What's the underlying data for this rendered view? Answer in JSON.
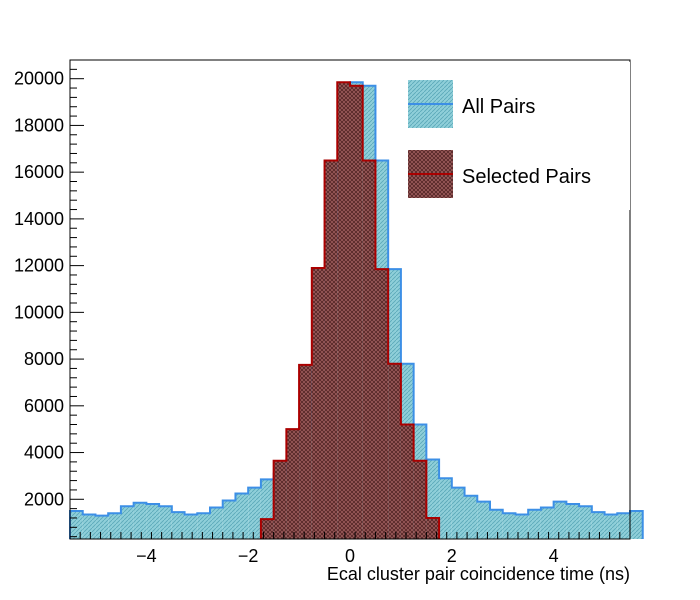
{
  "chart_data": {
    "type": "histogram",
    "title": "",
    "xlabel": "Ecal cluster pair coincidence time (ns)",
    "ylabel": "",
    "xlim": [
      -5.5,
      5.5
    ],
    "ylim": [
      300,
      20800
    ],
    "bin_width": 0.25,
    "x_ticks": [
      -4,
      -2,
      0,
      2,
      4
    ],
    "x_tick_labels": [
      "−4",
      "−2",
      "0",
      "2",
      "4"
    ],
    "y_ticks": [
      2000,
      4000,
      6000,
      8000,
      10000,
      12000,
      14000,
      16000,
      18000,
      20000
    ],
    "y_tick_labels": [
      "2000",
      "4000",
      "6000",
      "8000",
      "10000",
      "12000",
      "14000",
      "16000",
      "18000",
      "20000"
    ],
    "grid": false,
    "legend_position": "top-right",
    "series": [
      {
        "name": "All Pairs",
        "line_color": "#3c8fe6",
        "fill_color": "#88c9d4",
        "bin_edges_start": -5.5,
        "values": [
          1500,
          1350,
          1300,
          1400,
          1700,
          1850,
          1800,
          1700,
          1450,
          1350,
          1400,
          1650,
          1950,
          2250,
          2500,
          2850,
          3100,
          3700,
          5050,
          7750,
          11900,
          16500,
          19850,
          19700,
          16500,
          11850,
          7800,
          5200,
          3700,
          2900,
          2500,
          2150,
          1900,
          1550,
          1400,
          1350,
          1550,
          1650,
          1900,
          1800,
          1700,
          1450,
          1350,
          1400,
          1500
        ]
      },
      {
        "name": "Selected Pairs",
        "line_color": "#aa0000",
        "fill_color": "#8a4a4a",
        "bin_edges_start": -1.75,
        "values": [
          1150,
          3650,
          5000,
          7750,
          11900,
          16500,
          19850,
          19700,
          16500,
          11850,
          7800,
          5200,
          3650,
          1200
        ]
      }
    ]
  }
}
